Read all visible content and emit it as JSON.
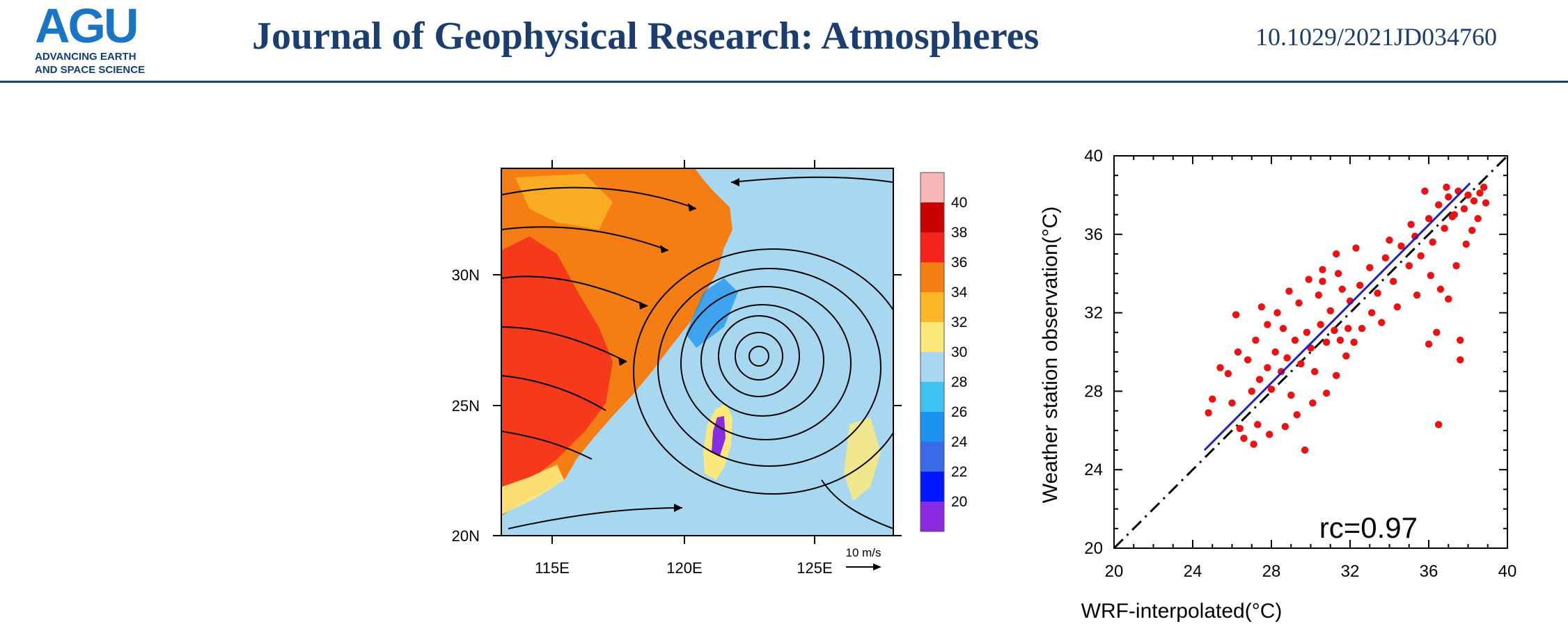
{
  "header": {
    "logo_mark": "AGU",
    "logo_line1": "ADVANCING EARTH",
    "logo_line2": "AND SPACE SCIENCE",
    "journal_title": "Journal of Geophysical Research: Atmospheres",
    "doi": "10.1029/2021JD034760"
  },
  "map": {
    "lat_ticks": [
      "30N",
      "25N",
      "20N"
    ],
    "lon_ticks": [
      "115E",
      "120E",
      "125E"
    ],
    "vector_ref": "10 m/s",
    "colorbar_labels": [
      "40",
      "38",
      "36",
      "34",
      "32",
      "30",
      "28",
      "26",
      "24",
      "22",
      "20"
    ],
    "colorbar_colors": [
      "#f7b7b9",
      "#c80000",
      "#f5231c",
      "#f47e14",
      "#fbb726",
      "#fbe97c",
      "#a8d8ef",
      "#3ec2f2",
      "#1b93ef",
      "#3a6ae6",
      "#0017ff",
      "#8a2be2"
    ]
  },
  "chart_data": {
    "type": "scatter",
    "title": "",
    "xlabel": "WRF-interpolated(°C)",
    "ylabel": "Weather station observation(°C)",
    "xlim": [
      20,
      40
    ],
    "ylim": [
      20,
      40
    ],
    "xticks": [
      "20",
      "24",
      "28",
      "32",
      "36",
      "40"
    ],
    "yticks": [
      "20",
      "24",
      "28",
      "32",
      "36",
      "40"
    ],
    "annotation": "rc=0.97",
    "series": [
      {
        "values": [
          [
            26.0,
            27.4
          ],
          [
            26.4,
            26.1
          ],
          [
            27.0,
            28.0
          ],
          [
            27.4,
            28.6
          ],
          [
            27.8,
            29.2
          ],
          [
            28.0,
            28.1
          ],
          [
            28.2,
            30.0
          ],
          [
            28.5,
            29.0
          ],
          [
            28.8,
            29.7
          ],
          [
            29.0,
            27.8
          ],
          [
            29.2,
            30.6
          ],
          [
            29.5,
            29.4
          ],
          [
            29.8,
            31.0
          ],
          [
            30.0,
            30.2
          ],
          [
            30.2,
            29.0
          ],
          [
            30.5,
            31.4
          ],
          [
            30.8,
            30.5
          ],
          [
            31.0,
            32.1
          ],
          [
            31.2,
            31.1
          ],
          [
            31.5,
            30.6
          ],
          [
            26.8,
            29.6
          ],
          [
            27.2,
            30.6
          ],
          [
            27.8,
            31.4
          ],
          [
            28.3,
            32.0
          ],
          [
            28.6,
            31.2
          ],
          [
            29.4,
            32.5
          ],
          [
            30.4,
            32.9
          ],
          [
            30.6,
            33.6
          ],
          [
            31.4,
            34.0
          ],
          [
            31.6,
            33.2
          ],
          [
            27.3,
            26.3
          ],
          [
            27.9,
            25.8
          ],
          [
            28.7,
            26.2
          ],
          [
            29.3,
            26.8
          ],
          [
            30.1,
            27.4
          ],
          [
            30.8,
            27.9
          ],
          [
            31.3,
            28.8
          ],
          [
            31.8,
            29.8
          ],
          [
            32.2,
            30.5
          ],
          [
            32.6,
            31.2
          ],
          [
            32.0,
            32.6
          ],
          [
            32.5,
            33.4
          ],
          [
            33.0,
            34.3
          ],
          [
            33.4,
            33.0
          ],
          [
            33.8,
            34.8
          ],
          [
            34.2,
            33.6
          ],
          [
            34.6,
            35.4
          ],
          [
            35.0,
            34.4
          ],
          [
            35.3,
            35.9
          ],
          [
            35.6,
            34.9
          ],
          [
            36.0,
            36.8
          ],
          [
            36.2,
            35.6
          ],
          [
            36.5,
            37.5
          ],
          [
            36.8,
            36.3
          ],
          [
            37.0,
            37.9
          ],
          [
            37.2,
            36.9
          ],
          [
            37.5,
            38.2
          ],
          [
            37.8,
            37.3
          ],
          [
            38.0,
            38.0
          ],
          [
            38.3,
            37.7
          ],
          [
            38.6,
            38.1
          ],
          [
            38.9,
            37.6
          ],
          [
            36.1,
            33.9
          ],
          [
            36.6,
            33.2
          ],
          [
            37.0,
            32.7
          ],
          [
            37.4,
            34.4
          ],
          [
            37.9,
            35.5
          ],
          [
            38.2,
            36.2
          ],
          [
            35.4,
            32.9
          ],
          [
            34.4,
            32.3
          ],
          [
            33.6,
            31.5
          ],
          [
            36.4,
            31.0
          ],
          [
            36.0,
            30.4
          ],
          [
            37.6,
            30.6
          ],
          [
            37.6,
            29.6
          ],
          [
            36.5,
            26.3
          ],
          [
            25.0,
            27.6
          ],
          [
            25.4,
            29.2
          ],
          [
            25.8,
            28.9
          ],
          [
            26.3,
            30.0
          ],
          [
            26.6,
            25.6
          ],
          [
            27.1,
            25.3
          ],
          [
            29.7,
            25.0
          ],
          [
            31.3,
            35.0
          ],
          [
            32.3,
            35.3
          ],
          [
            35.1,
            36.5
          ],
          [
            24.8,
            26.9
          ],
          [
            29.9,
            33.7
          ],
          [
            30.6,
            34.2
          ],
          [
            28.9,
            33.1
          ],
          [
            33.1,
            32.0
          ],
          [
            34.0,
            35.7
          ],
          [
            35.8,
            38.2
          ],
          [
            36.9,
            38.4
          ],
          [
            37.3,
            37.0
          ],
          [
            38.5,
            36.8
          ],
          [
            38.8,
            38.4
          ],
          [
            27.5,
            32.3
          ],
          [
            26.2,
            31.9
          ],
          [
            31.9,
            31.2
          ]
        ]
      }
    ],
    "fit_line": [
      [
        24.6,
        25.0
      ],
      [
        38.1,
        38.6
      ]
    ],
    "reference_line": [
      [
        20,
        20
      ],
      [
        40,
        40
      ]
    ]
  }
}
